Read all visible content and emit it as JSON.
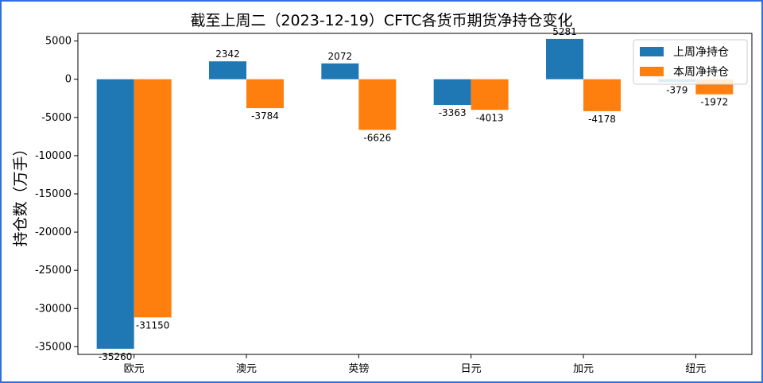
{
  "chart_data": {
    "type": "bar",
    "title": "截至上周二（2023-12-19）CFTC各货币期货净持仓变化",
    "xlabel": "",
    "ylabel": "持仓数（万手）",
    "categories": [
      "欧元",
      "澳元",
      "英镑",
      "日元",
      "加元",
      "纽元"
    ],
    "series": [
      {
        "name": "上周净持仓",
        "values": [
          -35260,
          2342,
          2072,
          -3363,
          5281,
          -379
        ],
        "color": "#1f77b4"
      },
      {
        "name": "本周净持仓",
        "values": [
          -31150,
          -3784,
          -6626,
          -4013,
          -4178,
          -1972
        ],
        "color": "#ff7f0e"
      }
    ],
    "ylim": [
      -36000,
      6000
    ],
    "yticks": [
      5000,
      0,
      -5000,
      -10000,
      -15000,
      -20000,
      -25000,
      -30000,
      -35000
    ],
    "grid": false,
    "legend": "top-right",
    "data_labels": true
  }
}
